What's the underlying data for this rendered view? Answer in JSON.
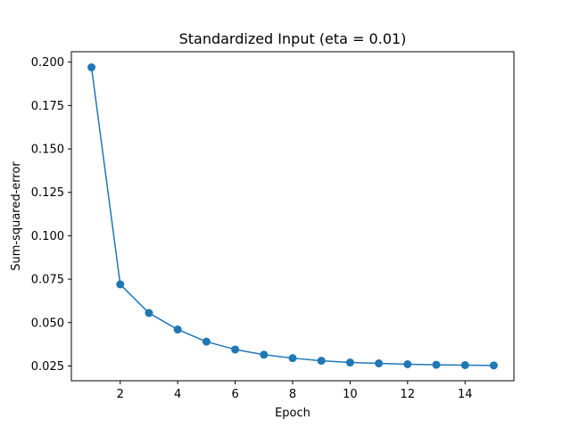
{
  "chart_data": {
    "type": "line",
    "title": "Standardized Input (eta = 0.01)",
    "xlabel": "Epoch",
    "ylabel": "Sum-squared-error",
    "xlim": [
      0.3,
      15.7
    ],
    "ylim": [
      0.0165,
      0.206
    ],
    "xticks": [
      2,
      4,
      6,
      8,
      10,
      12,
      14
    ],
    "xtick_labels": [
      "2",
      "4",
      "6",
      "8",
      "10",
      "12",
      "14"
    ],
    "yticks": [
      0.025,
      0.05,
      0.075,
      0.1,
      0.125,
      0.15,
      0.175,
      0.2
    ],
    "ytick_labels": [
      "0.025",
      "0.050",
      "0.075",
      "0.100",
      "0.125",
      "0.150",
      "0.175",
      "0.200"
    ],
    "grid": false,
    "series": [
      {
        "color": "#1f77b4",
        "marker": "circle",
        "x": [
          1,
          2,
          3,
          4,
          5,
          6,
          7,
          8,
          9,
          10,
          11,
          12,
          13,
          14,
          15
        ],
        "y": [
          0.197,
          0.072,
          0.0555,
          0.046,
          0.039,
          0.0345,
          0.0315,
          0.0295,
          0.028,
          0.027,
          0.0265,
          0.026,
          0.0257,
          0.0255,
          0.0253
        ]
      }
    ]
  }
}
